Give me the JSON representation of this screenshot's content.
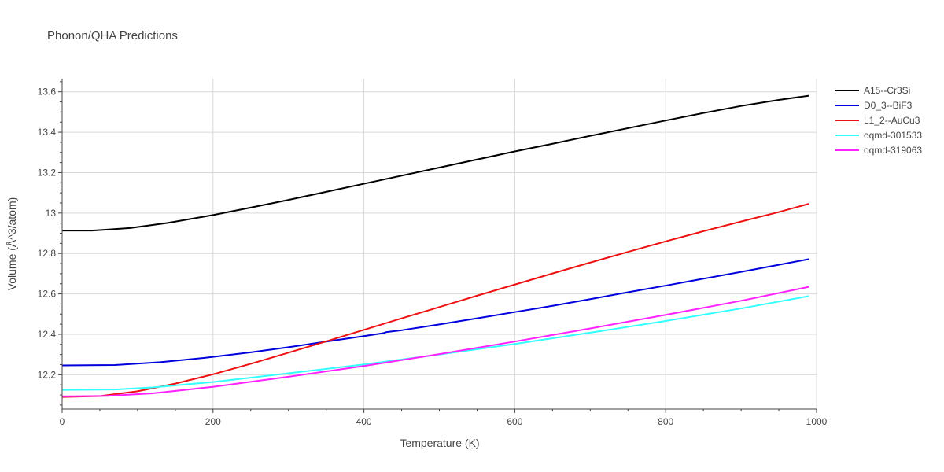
{
  "chart_data": {
    "type": "line",
    "title": "Phonon/QHA Predictions",
    "xlabel": "Temperature (K)",
    "ylabel": "Volume (Å^3/atom)",
    "xlim": [
      0,
      1000
    ],
    "ylim": [
      12.03,
      13.665
    ],
    "xticks": [
      0,
      200,
      400,
      600,
      800,
      1000
    ],
    "xtick_labels": [
      "0",
      "200",
      "400",
      "600",
      "800",
      "1000"
    ],
    "yticks": [
      12.2,
      12.4,
      12.6,
      12.8,
      13.0,
      13.2,
      13.4,
      13.6
    ],
    "ytick_labels": [
      "12.2",
      "12.4",
      "12.6",
      "12.8",
      "13",
      "13.2",
      "13.4",
      "13.6"
    ],
    "grid": true,
    "legend_position": "top-right",
    "series": [
      {
        "name": "A15--Cr3Si",
        "color": "#000000",
        "x": [
          0,
          40,
          90,
          140,
          200,
          250,
          300,
          350,
          400,
          450,
          500,
          550,
          600,
          650,
          700,
          750,
          800,
          850,
          900,
          950,
          990
        ],
        "y": [
          12.913,
          12.913,
          12.926,
          12.951,
          12.99,
          13.027,
          13.065,
          13.105,
          13.145,
          13.185,
          13.225,
          13.265,
          13.305,
          13.343,
          13.382,
          13.42,
          13.458,
          13.495,
          13.53,
          13.56,
          13.581
        ]
      },
      {
        "name": "D0_3--BiF3",
        "color": "#0000dd",
        "x": [
          0,
          70,
          130,
          190,
          250,
          300,
          350,
          400,
          425,
          430,
          450,
          500,
          550,
          600,
          650,
          700,
          750,
          800,
          850,
          900,
          950,
          990
        ],
        "y": [
          12.246,
          12.248,
          12.262,
          12.284,
          12.311,
          12.336,
          12.364,
          12.391,
          12.405,
          12.411,
          12.42,
          12.449,
          12.479,
          12.51,
          12.541,
          12.574,
          12.608,
          12.641,
          12.675,
          12.709,
          12.744,
          12.772
        ]
      },
      {
        "name": "L1_2--AuCu3",
        "color": "#ee1111",
        "x": [
          0,
          50,
          100,
          150,
          200,
          250,
          300,
          350,
          400,
          450,
          500,
          550,
          600,
          650,
          700,
          750,
          800,
          850,
          900,
          950,
          990
        ],
        "y": [
          12.09,
          12.094,
          12.118,
          12.156,
          12.202,
          12.254,
          12.309,
          12.365,
          12.422,
          12.479,
          12.535,
          12.591,
          12.646,
          12.701,
          12.755,
          12.808,
          12.86,
          12.91,
          12.958,
          13.005,
          13.046
        ]
      },
      {
        "name": "oqmd-301533",
        "color": "#33ffff",
        "x": [
          0,
          70,
          120,
          200,
          300,
          400,
          500,
          600,
          700,
          800,
          900,
          990
        ],
        "y": [
          12.125,
          12.127,
          12.137,
          12.164,
          12.207,
          12.251,
          12.3,
          12.352,
          12.408,
          12.466,
          12.528,
          12.589
        ]
      },
      {
        "name": "oqmd-319063",
        "color": "#ff22ff",
        "x": [
          0,
          60,
          120,
          200,
          300,
          400,
          500,
          600,
          700,
          800,
          900,
          990
        ],
        "y": [
          12.093,
          12.095,
          12.108,
          12.14,
          12.19,
          12.243,
          12.302,
          12.364,
          12.429,
          12.496,
          12.566,
          12.635
        ]
      }
    ]
  }
}
